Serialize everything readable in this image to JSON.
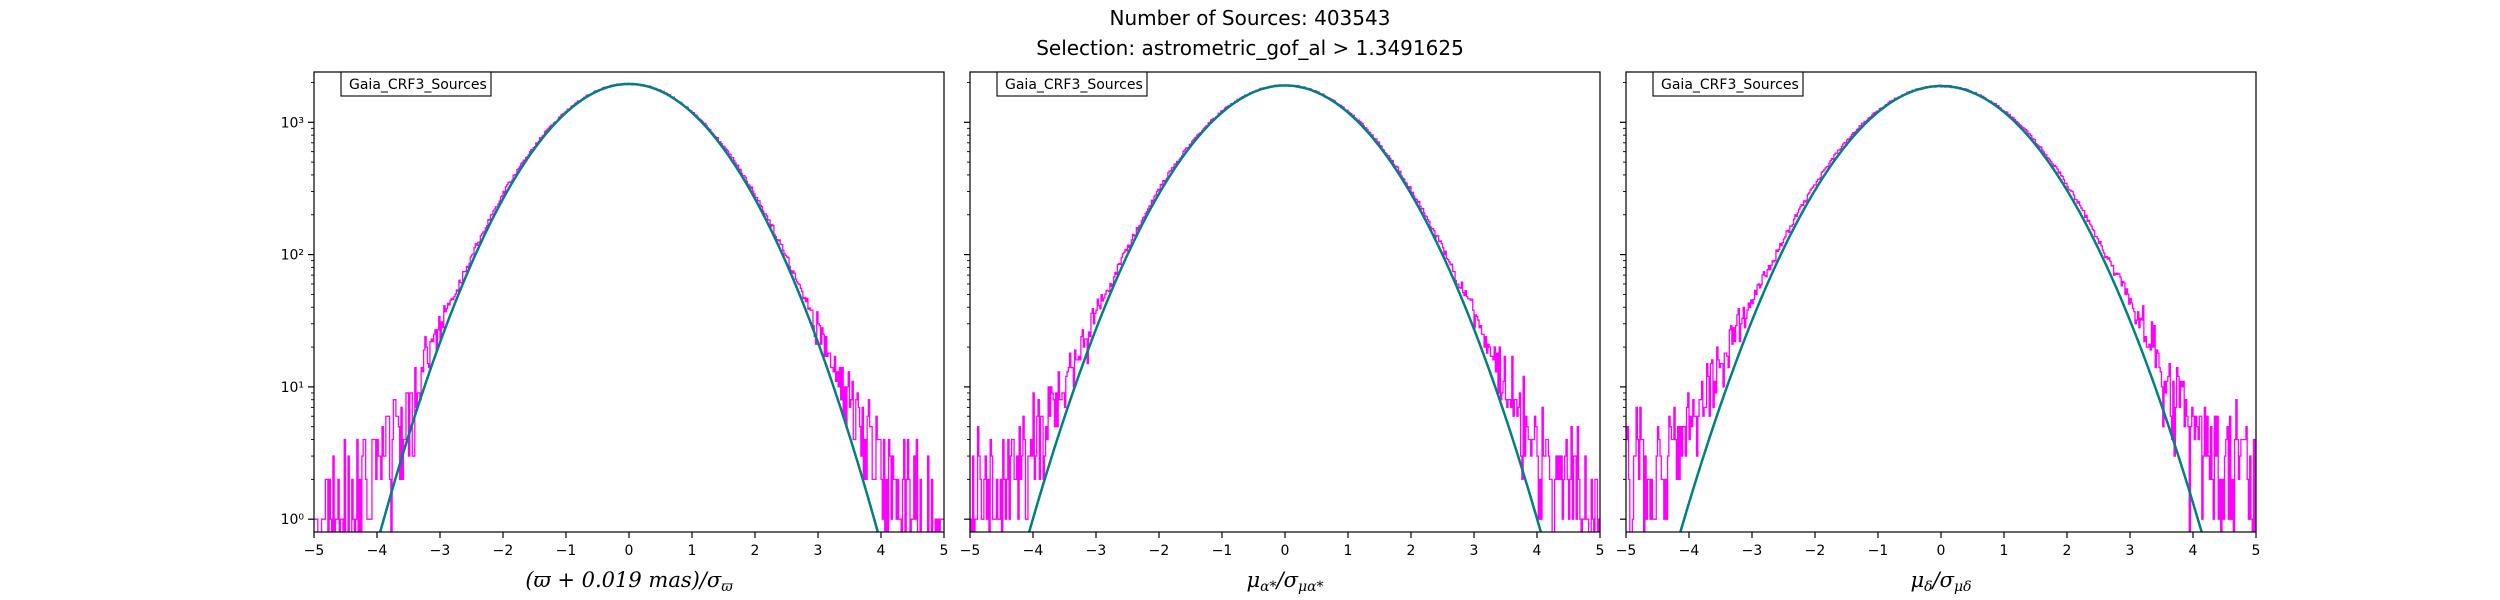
{
  "figure": {
    "title_line1": "Number of Sources: 403543",
    "title_line2": "Selection: astrometric_gof_al > 1.3491625"
  },
  "colors": {
    "histogram": "#ff00ff",
    "fit": "#008080",
    "axes": "#000000"
  },
  "chart_data": [
    {
      "type": "line",
      "legend": "Gaia_CRF3_Sources",
      "xlabel": "(ϖ + 0.019 mas)/σ_ϖ",
      "xlabel_parts": {
        "main": "(ϖ + 0.019 mas)/σ",
        "sub": "ϖ"
      },
      "ylabel": "",
      "xlim": [
        -5,
        5
      ],
      "ylim": [
        0.8,
        2400
      ],
      "yscale": "log",
      "xticks": [
        -5,
        -4,
        -3,
        -2,
        -1,
        0,
        1,
        2,
        3,
        4,
        5
      ],
      "yticks": [
        {
          "value": 1,
          "label": "10⁰"
        },
        {
          "value": 10,
          "label": "10¹"
        },
        {
          "value": 100,
          "label": "10²"
        },
        {
          "value": 1000,
          "label": "10³"
        }
      ],
      "series": [
        {
          "kind": "fit",
          "peak": 1950,
          "sigma": 1.0,
          "mean": 0.0
        },
        {
          "kind": "histogram",
          "peak": 1950,
          "sigma": 1.02,
          "tail_floor": 1.3,
          "tail_width": 1.5
        }
      ]
    },
    {
      "type": "line",
      "legend": "Gaia_CRF3_Sources",
      "xlabel": "μ_α*/σ_μα*",
      "xlabel_parts": {
        "main": "μ",
        "mainsub": "α*",
        "rest": "/σ",
        "sub": "μα*"
      },
      "ylabel": "",
      "xlim": [
        -5,
        5
      ],
      "ylim": [
        0.8,
        2400
      ],
      "yscale": "log",
      "xticks": [
        -5,
        -4,
        -3,
        -2,
        -1,
        0,
        1,
        2,
        3,
        4,
        5
      ],
      "yticks": [
        {
          "value": 1,
          "label": ""
        },
        {
          "value": 10,
          "label": ""
        },
        {
          "value": 100,
          "label": ""
        },
        {
          "value": 1000,
          "label": ""
        }
      ],
      "series": [
        {
          "kind": "fit",
          "peak": 1900,
          "sigma": 1.03,
          "mean": 0.0
        },
        {
          "kind": "histogram",
          "peak": 1900,
          "sigma": 1.05,
          "tail_floor": 1.6,
          "tail_width": 1.6
        }
      ]
    },
    {
      "type": "line",
      "legend": "Gaia_CRF3_Sources",
      "xlabel": "μ_δ/σ_μδ",
      "xlabel_parts": {
        "main": "μ",
        "mainsub": "δ",
        "rest": "/σ",
        "sub": "μδ"
      },
      "ylabel": "",
      "xlim": [
        -5,
        5
      ],
      "ylim": [
        0.8,
        2400
      ],
      "yscale": "log",
      "xticks": [
        -5,
        -4,
        -3,
        -2,
        -1,
        0,
        1,
        2,
        3,
        4,
        5
      ],
      "yticks": [
        {
          "value": 1,
          "label": ""
        },
        {
          "value": 10,
          "label": ""
        },
        {
          "value": 100,
          "label": ""
        },
        {
          "value": 1000,
          "label": ""
        }
      ],
      "series": [
        {
          "kind": "fit",
          "peak": 1880,
          "sigma": 1.05,
          "mean": 0.0
        },
        {
          "kind": "histogram",
          "peak": 1880,
          "sigma": 1.08,
          "tail_floor": 2.2,
          "tail_width": 1.8
        }
      ]
    }
  ]
}
